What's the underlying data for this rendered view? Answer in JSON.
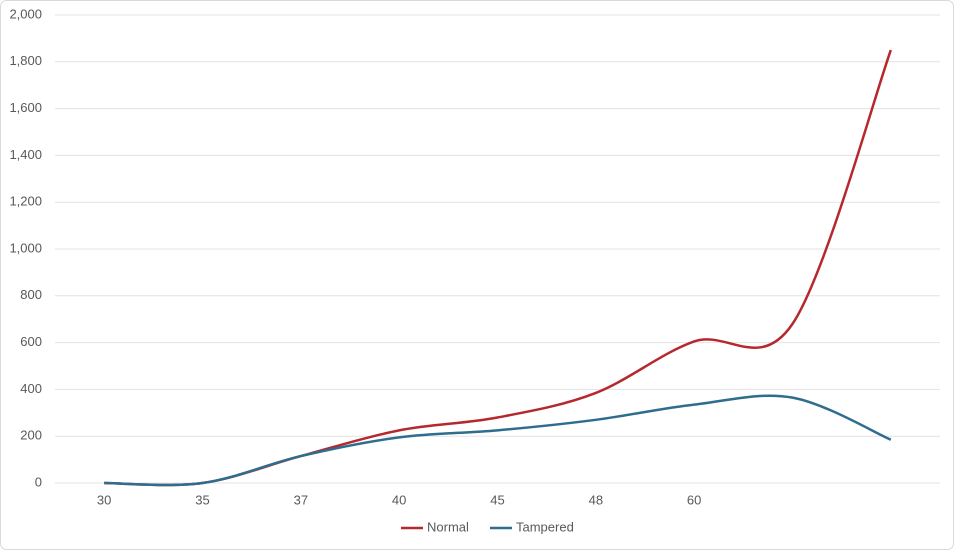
{
  "chart_data": {
    "type": "line",
    "categories": [
      "30",
      "35",
      "37",
      "40",
      "45",
      "48",
      "60",
      null,
      null
    ],
    "series": [
      {
        "name": "Normal",
        "color": "#b5282e",
        "values": [
          0,
          0,
          115,
          225,
          280,
          385,
          605,
          680,
          1850
        ]
      },
      {
        "name": "Tampered",
        "color": "#2e6d8e",
        "values": [
          0,
          0,
          115,
          195,
          225,
          270,
          335,
          365,
          185
        ]
      }
    ],
    "ylim": [
      0,
      2000
    ],
    "yticks": [
      0,
      200,
      400,
      600,
      800,
      {
        "value": 1000,
        "label": "1,000"
      },
      {
        "value": 1200,
        "label": "1,200"
      },
      {
        "value": 1400,
        "label": "1,400"
      },
      {
        "value": 1600,
        "label": "1,600"
      },
      {
        "value": 1800,
        "label": "1,800"
      },
      {
        "value": 2000,
        "label": "2,000"
      }
    ],
    "grid": true,
    "smooth": true,
    "legend": "bottom"
  }
}
